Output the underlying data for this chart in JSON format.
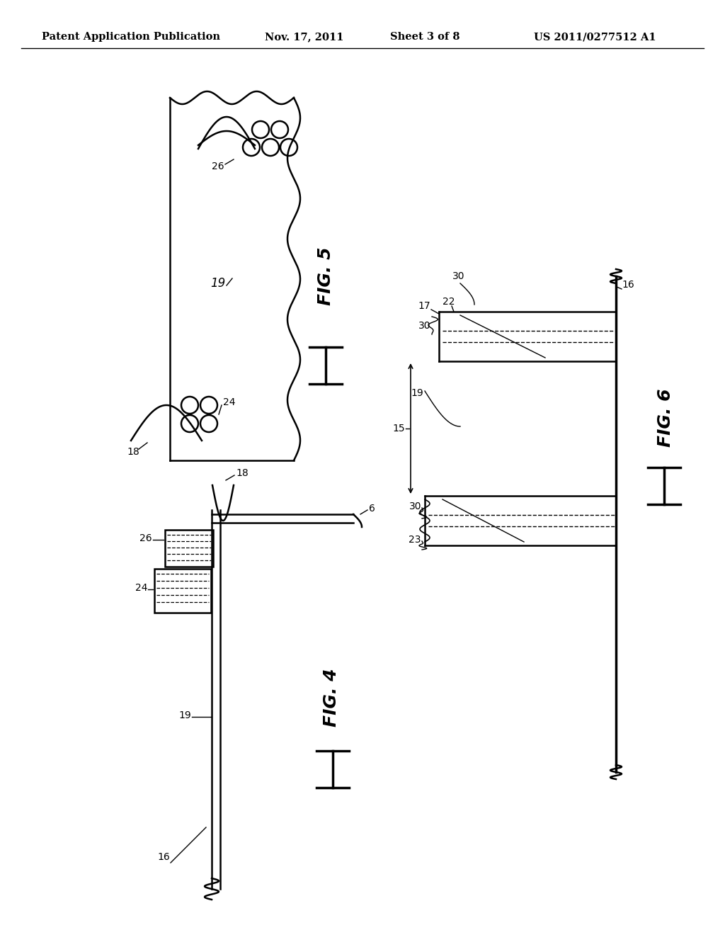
{
  "bg_color": "#ffffff",
  "header_text": "Patent Application Publication",
  "header_date": "Nov. 17, 2011",
  "header_sheet": "Sheet 3 of 8",
  "header_patent": "US 2011/0277512 A1"
}
